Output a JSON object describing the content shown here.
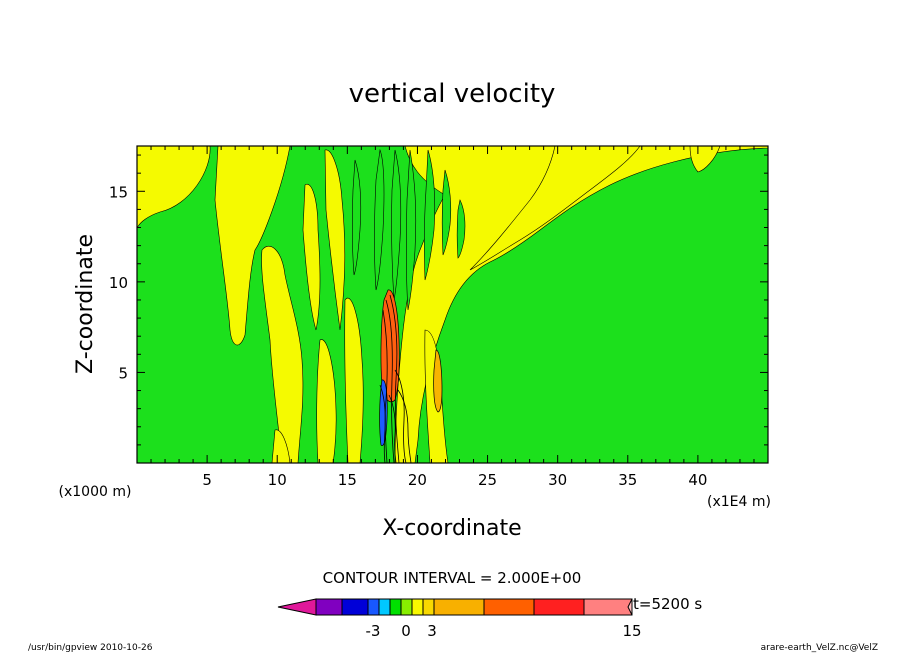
{
  "chart_data": {
    "type": "heatmap",
    "title": "vertical velocity",
    "xlabel": "X-coordinate",
    "ylabel": "Z-coordinate",
    "x_unit_left": "(x1000 m)",
    "x_unit_right": "(x1E4 m)",
    "xlim": [
      0,
      45
    ],
    "ylim": [
      0,
      17.5
    ],
    "x_ticks": [
      "5",
      "10",
      "15",
      "20",
      "25",
      "30",
      "35",
      "40"
    ],
    "y_ticks": [
      "5",
      "10",
      "15"
    ],
    "contour_interval": "CONTOUR INTERVAL = 2.000E+00",
    "time": "t=5200 s",
    "colorbar_labels": [
      "-3",
      "0",
      "3",
      "15"
    ],
    "colorbar_colors": [
      "#e0189a",
      "#8000c0",
      "#0000d8",
      "#1858ff",
      "#00c8ff",
      "#00e000",
      "#88ee00",
      "#f8f800",
      "#f8d800",
      "#f8b000",
      "#ff6000",
      "#ff2020",
      "#ff8080",
      "#ffc0c0"
    ],
    "region_colors": {
      "background": "#1ce01c",
      "positive_low": "#f5fa00",
      "positive_mid": "#f8b400",
      "positive_high": "#ff6010",
      "negative": "#1e5cff"
    },
    "footer_left": "/usr/bin/gpview  2010-10-26",
    "footer_right": "arare-earth_VelZ.nc@VelZ"
  }
}
